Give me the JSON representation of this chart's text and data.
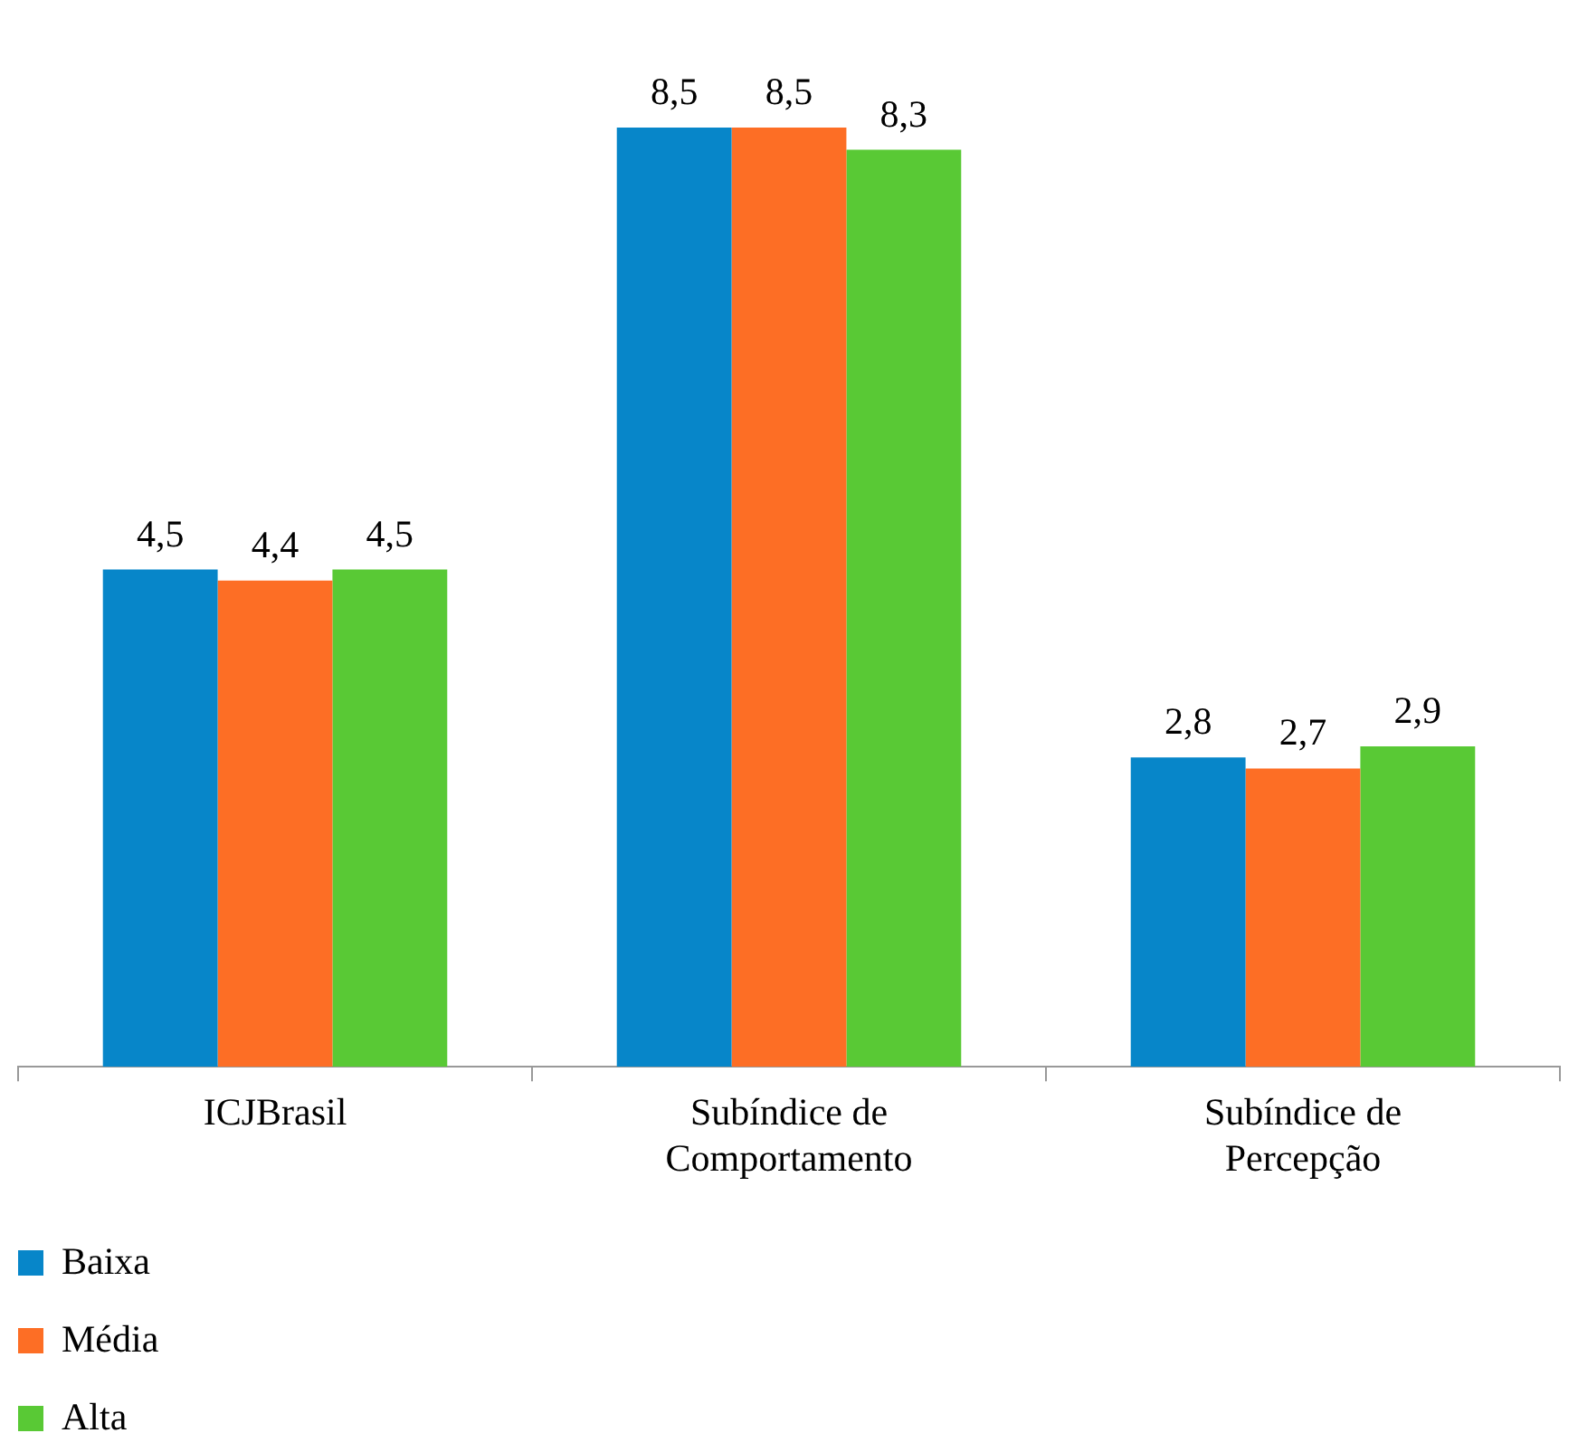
{
  "chart_data": {
    "type": "bar",
    "categories": [
      "ICJBrasil",
      "Subíndice de Comportamento",
      "Subíndice de Percepção"
    ],
    "series": [
      {
        "name": "Baixa",
        "color": "#0786c9",
        "values": [
          4.5,
          8.5,
          2.8
        ],
        "value_labels": [
          "4,5",
          "8,5",
          "2,8"
        ]
      },
      {
        "name": "Média",
        "color": "#fd6e25",
        "values": [
          4.4,
          8.5,
          2.7
        ],
        "value_labels": [
          "4,4",
          "8,5",
          "2,7"
        ]
      },
      {
        "name": "Alta",
        "color": "#59c935",
        "values": [
          4.5,
          8.3,
          2.9
        ],
        "value_labels": [
          "4,5",
          "8,3",
          "2,9"
        ]
      }
    ],
    "legend": "bottom left",
    "grid": false
  }
}
